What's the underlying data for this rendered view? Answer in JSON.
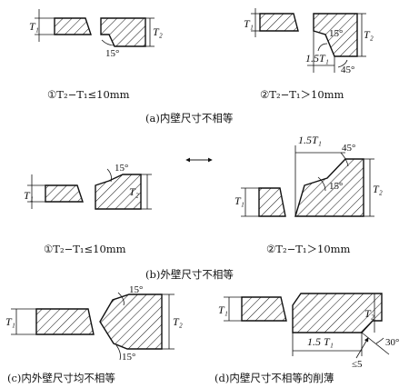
{
  "panel_a": {
    "sub1_caption": "①T₂−T₁≤10mm",
    "sub2_caption": "②T₂−T₁＞10mm",
    "caption": "(a)内壁尺寸不相等",
    "angles": {
      "sub1": "15°",
      "sub2_a": "15°",
      "sub2_b": "45°"
    },
    "offset_label": "1.5T₁"
  },
  "panel_b": {
    "sub1_caption": "①T₂−T₁≤10mm",
    "sub2_caption": "②T₂−T₁＞10mm",
    "caption": "(b)外壁尺寸不相等",
    "angles": {
      "sub1": "15°",
      "sub2_a": "45°",
      "sub2_b": "15°"
    },
    "offset_label": "1.5T₁"
  },
  "panel_c": {
    "caption": "(c)内外壁尺寸均不相等",
    "angles": {
      "top": "15°",
      "bottom": "15°"
    }
  },
  "panel_d": {
    "caption": "(d)内壁尺寸不相等的削薄",
    "offset_label": "1.5 T₁",
    "limit_label": "≤5",
    "angle": "30°"
  },
  "labels": {
    "t1": "T₁",
    "t2": "T₂"
  }
}
